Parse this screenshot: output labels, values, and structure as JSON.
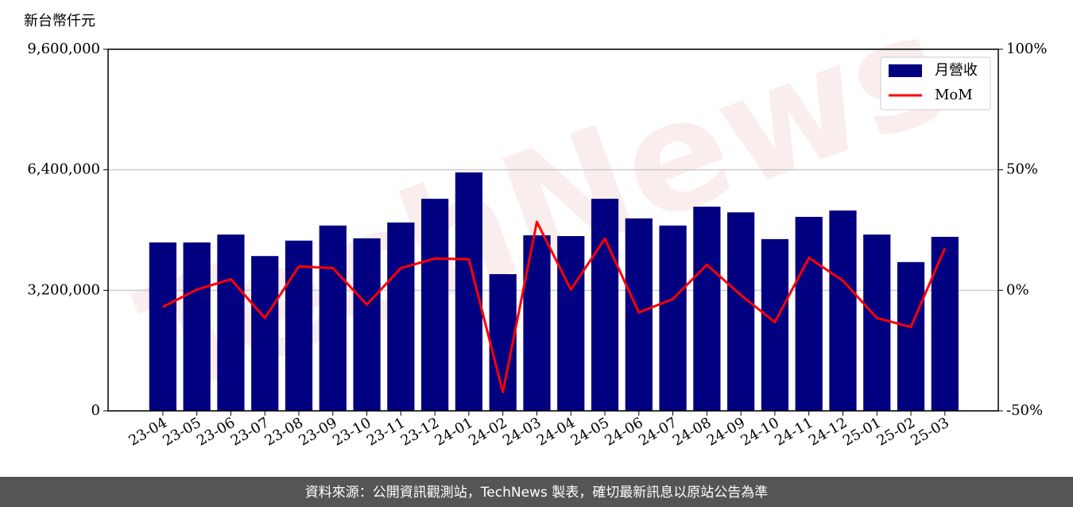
{
  "chart_data": {
    "type": "bar-line",
    "y_label": "新台幣仟元",
    "categories": [
      "23-04",
      "23-05",
      "23-06",
      "23-07",
      "23-08",
      "23-09",
      "23-10",
      "23-11",
      "23-12",
      "24-01",
      "24-02",
      "24-03",
      "24-04",
      "24-05",
      "24-06",
      "24-07",
      "24-08",
      "24-09",
      "24-10",
      "24-11",
      "24-12",
      "25-01",
      "25-02",
      "25-03"
    ],
    "series": [
      {
        "name": "月營收",
        "type": "bar",
        "color": "#000080",
        "values": [
          4470000,
          4470000,
          4680000,
          4110000,
          4520000,
          4920000,
          4580000,
          5000000,
          5630000,
          6330000,
          3630000,
          4660000,
          4640000,
          5630000,
          5110000,
          4920000,
          5420000,
          5270000,
          4560000,
          5150000,
          5320000,
          4680000,
          3950000,
          4620000
        ]
      },
      {
        "name": "MoM",
        "type": "line",
        "axis": "y2",
        "color": "#ff0000",
        "values": [
          -6.9,
          0.3,
          4.6,
          -11.5,
          9.9,
          9.2,
          -5.9,
          9.2,
          13.2,
          12.9,
          -42.2,
          28.4,
          0.3,
          21.4,
          -9.2,
          -3.6,
          10.6,
          -2.0,
          -13.2,
          13.5,
          4.0,
          -11.5,
          -15.2,
          17.5
        ]
      }
    ],
    "ylim": [
      0,
      9600000
    ],
    "yticks": [
      {
        "value": 0,
        "label": "0"
      },
      {
        "value": 3200000,
        "label": "3,200,000"
      },
      {
        "value": 6400000,
        "label": "6,400,000"
      },
      {
        "value": 9600000,
        "label": "9,600,000"
      }
    ],
    "y2lim": [
      -50,
      100
    ],
    "y2ticks": [
      {
        "value": -50,
        "label": "-50%"
      },
      {
        "value": 0,
        "label": "0%"
      },
      {
        "value": 50,
        "label": "50%"
      },
      {
        "value": 100,
        "label": "100%"
      }
    ],
    "grid": true,
    "legend": "upper right",
    "watermark": "TechNews",
    "footer": "資料來源：公開資訊觀測站，TechNews 製表，確切最新訊息以原站公告為準"
  }
}
